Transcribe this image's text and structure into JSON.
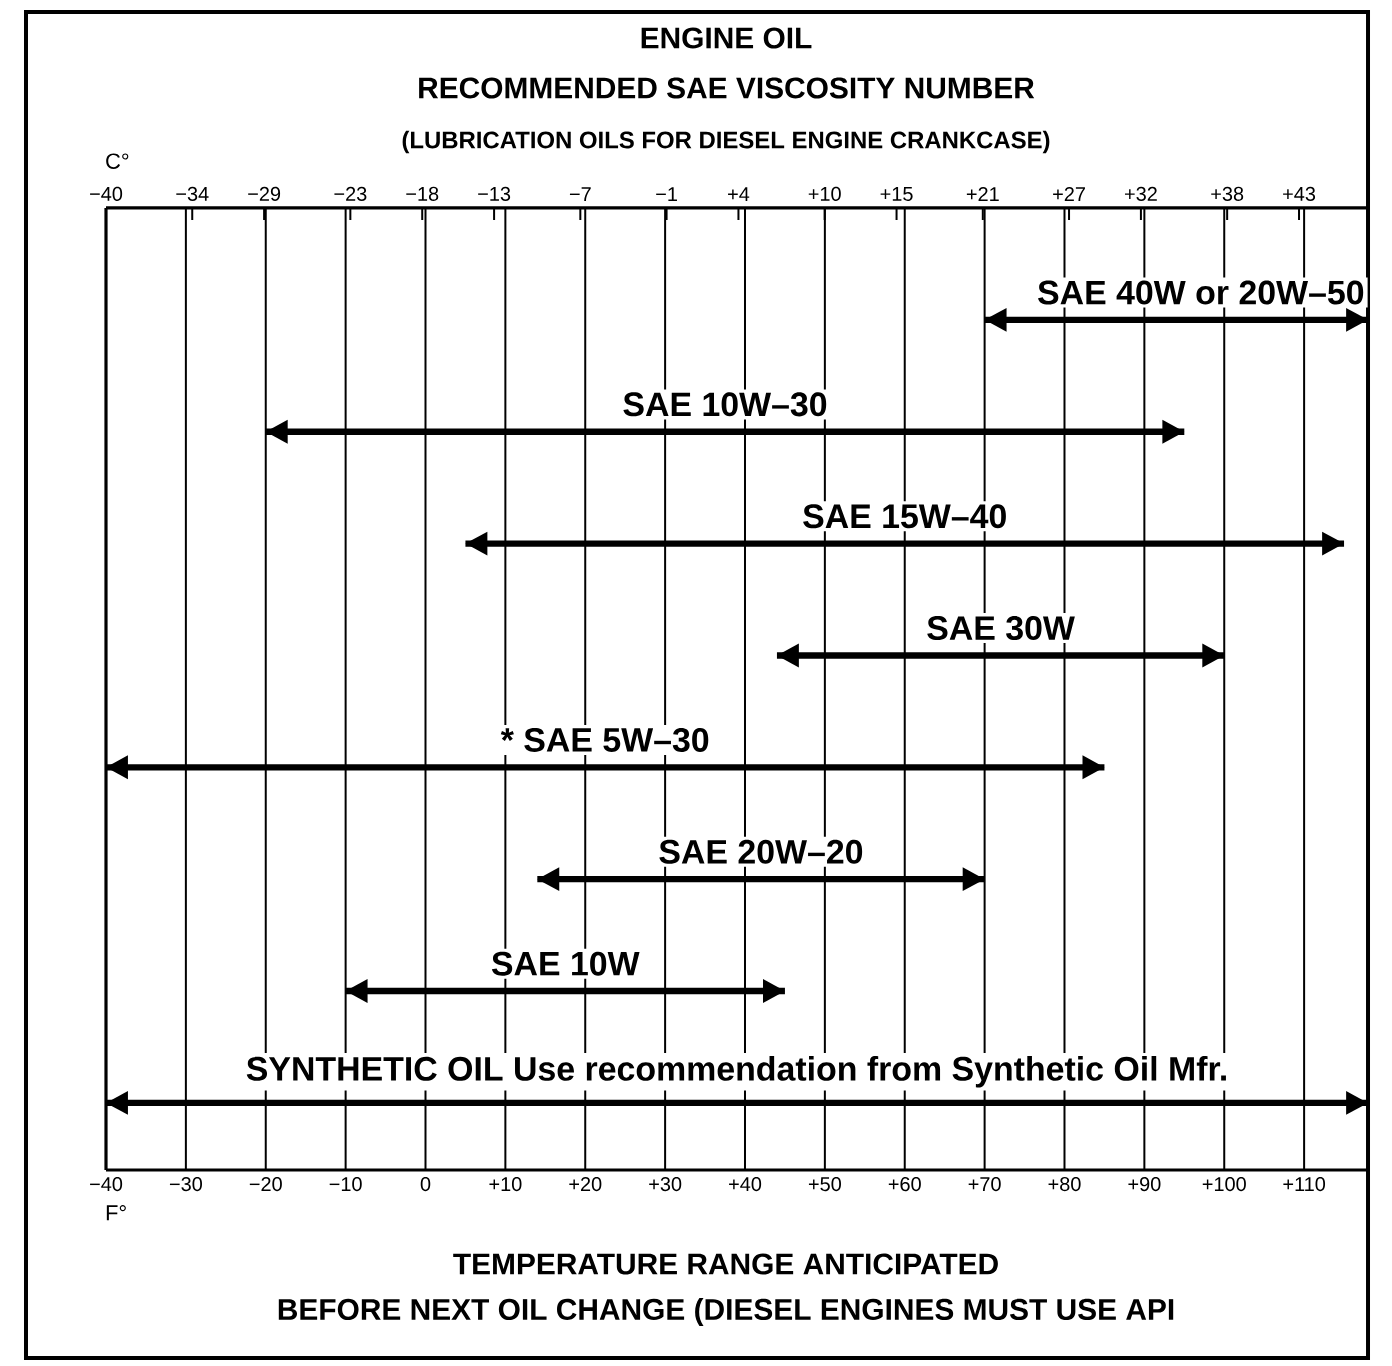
{
  "chart_data": {
    "type": "bar",
    "orientation": "horizontal",
    "title": "ENGINE OIL",
    "subtitle": "RECOMMENDED SAE VISCOSITY NUMBER",
    "xlabel": "F°",
    "x2label": "C°",
    "annotations": [
      "(LUBRICATION OILS FOR DIESEL ENGINE CRANKCASE)",
      "TEMPERATURE RANGE ANTICIPATED",
      "BEFORE NEXT OIL CHANGE (DIESEL ENGINES MUST USE API"
    ],
    "categories": [
      "SAE 40W or 20W–50",
      "SAE 10W–30",
      "SAE 15W–40",
      "SAE 30W",
      "* SAE 5W–30",
      "SAE 20W–20",
      "SAE 10W",
      "SYNTHETIC OIL Use recommendation from Synthetic Oil Mfr."
    ],
    "base": [
      70,
      -20,
      5,
      44,
      -40,
      14,
      -10,
      -40
    ],
    "values": [
      48,
      115,
      110,
      56,
      125,
      56,
      55,
      158
    ],
    "color": "#000000",
    "xlim": [
      -40,
      118
    ],
    "xticks": [
      {
        "value": -40,
        "label": "−40"
      },
      {
        "value": -30,
        "label": "−30"
      },
      {
        "value": -20,
        "label": "−20"
      },
      {
        "value": -10,
        "label": "−10"
      },
      0,
      {
        "value": 10,
        "label": "+10"
      },
      {
        "value": 20,
        "label": "+20"
      },
      {
        "value": 30,
        "label": "+30"
      },
      {
        "value": 40,
        "label": "+40"
      },
      {
        "value": 50,
        "label": "+50"
      },
      {
        "value": 60,
        "label": "+60"
      },
      {
        "value": 70,
        "label": "+70"
      },
      {
        "value": 80,
        "label": "+80"
      },
      {
        "value": 90,
        "label": "+90"
      },
      {
        "value": 100,
        "label": "+100"
      },
      {
        "value": 110,
        "label": "+110"
      }
    ],
    "x2lim": [
      -40,
      47.8
    ],
    "x2ticks": [
      {
        "value": -40,
        "label": "−40"
      },
      {
        "value": -34,
        "label": "−34"
      },
      {
        "value": -29,
        "label": "−29"
      },
      {
        "value": -23,
        "label": "−23"
      },
      {
        "value": -18,
        "label": "−18"
      },
      {
        "value": -13,
        "label": "−13"
      },
      {
        "value": -7,
        "label": "−7"
      },
      {
        "value": -1,
        "label": "−1"
      },
      {
        "value": 4,
        "label": "+4"
      },
      {
        "value": 10,
        "label": "+10"
      },
      {
        "value": 15,
        "label": "+15"
      },
      {
        "value": 21,
        "label": "+21"
      },
      {
        "value": 27,
        "label": "+27"
      },
      {
        "value": 32,
        "label": "+32"
      },
      {
        "value": 38,
        "label": "+38"
      },
      {
        "value": 43,
        "label": "+43"
      }
    ],
    "grid": "x",
    "tick_labels": "x"
  }
}
